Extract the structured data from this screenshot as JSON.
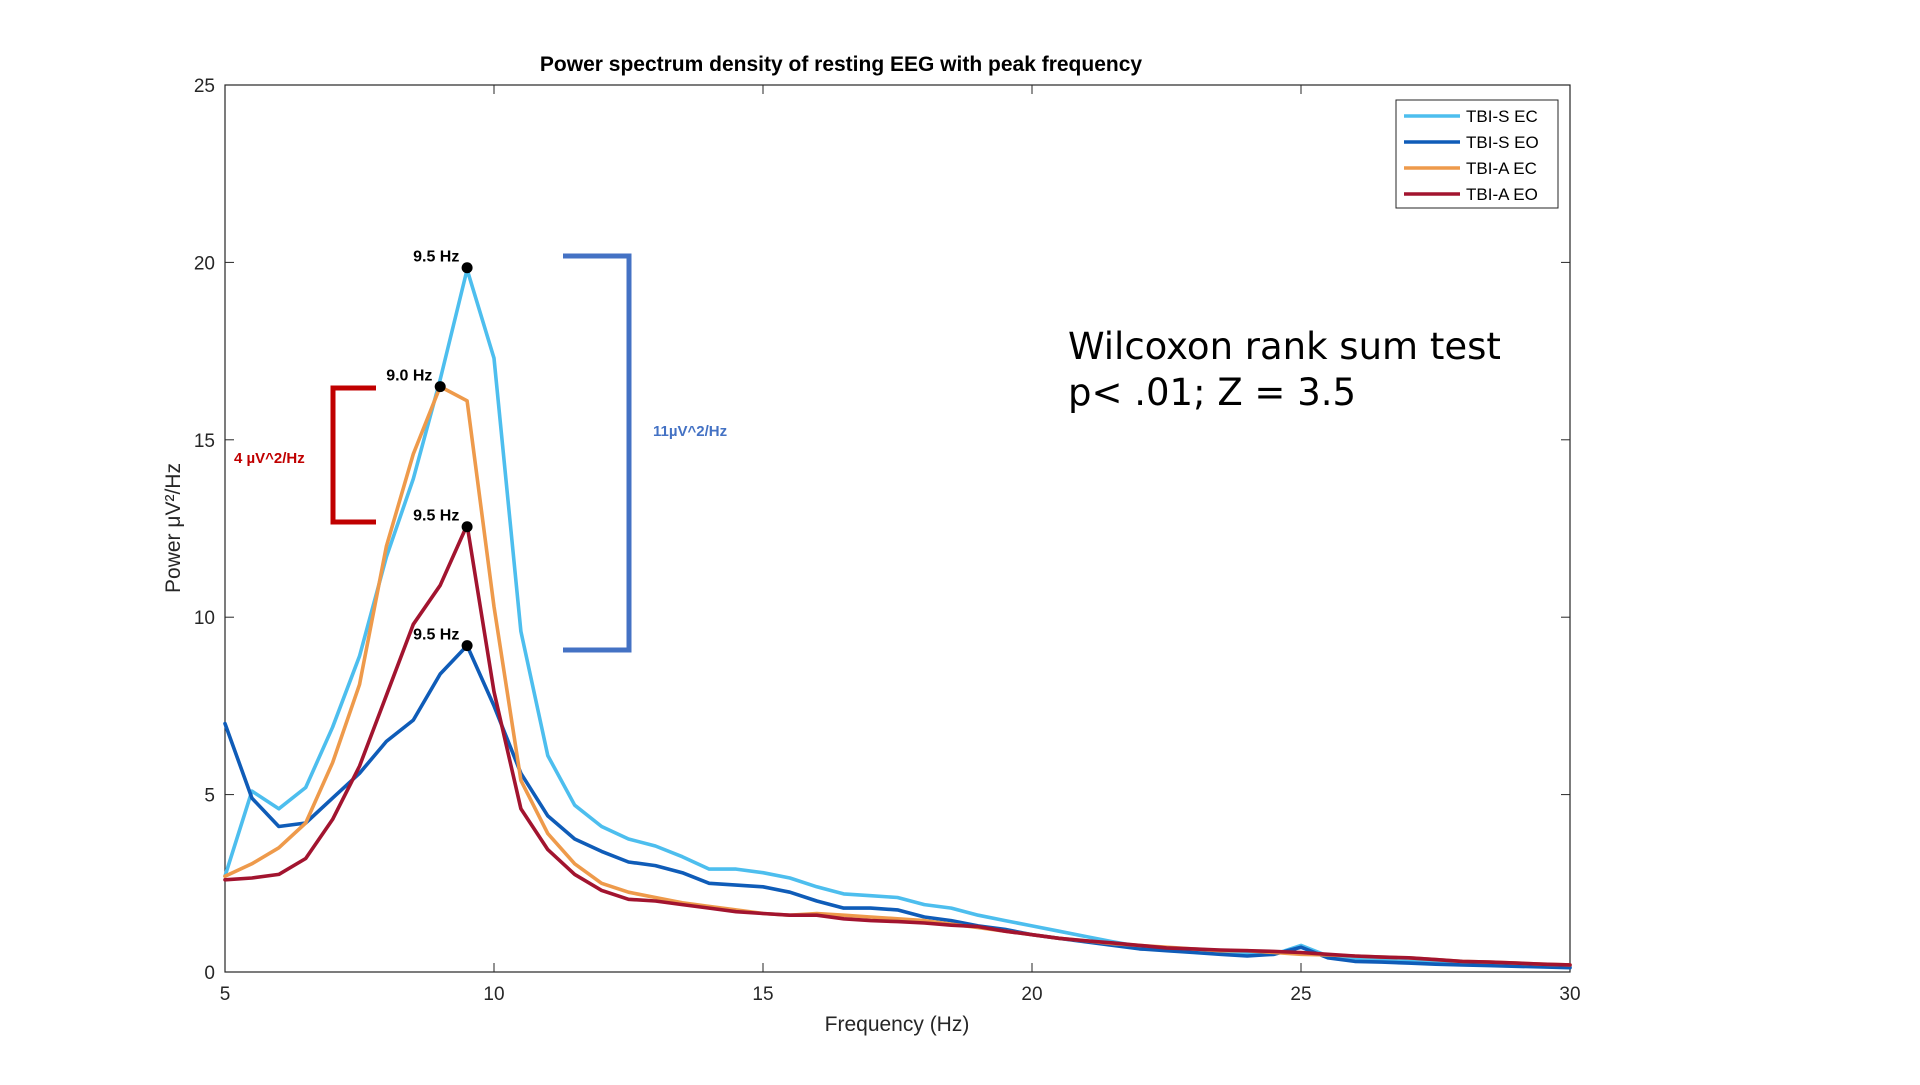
{
  "colors": {
    "tbi_s_ec": "#4DBEEE",
    "tbi_s_eo": "#0F5CB8",
    "tbi_a_ec": "#EE9A4B",
    "tbi_a_eo": "#A2142F",
    "bracket_red": "#C00000",
    "bracket_blue": "#4472C4"
  },
  "annotations": {
    "diff_a_label": "4 µV^2/Hz",
    "diff_s_label": "11µV^2/Hz",
    "stat_line1": "Wilcoxon rank sum test",
    "stat_line2": "p< .01; Z = 3.5"
  },
  "chart_data": {
    "type": "line",
    "title": "Power spectrum density of resting EEG with peak frequency",
    "xlabel": "Frequency (Hz)",
    "ylabel": "Power μV²/Hz",
    "xlim": [
      5,
      30
    ],
    "ylim": [
      0,
      25
    ],
    "xticks": [
      5,
      10,
      15,
      20,
      25,
      30
    ],
    "yticks": [
      0,
      5,
      10,
      15,
      20,
      25
    ],
    "grid": false,
    "legend_position": "top-right",
    "x": [
      5,
      5.5,
      6,
      6.5,
      7,
      7.5,
      8,
      8.5,
      9,
      9.5,
      10,
      10.5,
      11,
      11.5,
      12,
      12.5,
      13,
      13.5,
      14,
      14.5,
      15,
      15.5,
      16,
      16.5,
      17,
      17.5,
      18,
      18.5,
      19,
      19.5,
      20,
      20.5,
      21,
      21.5,
      22,
      22.5,
      23,
      23.5,
      24,
      24.5,
      25,
      25.5,
      26,
      26.5,
      27,
      27.5,
      28,
      28.5,
      29,
      29.5,
      30
    ],
    "series": [
      {
        "name": "TBI-S EC",
        "color": "#4DBEEE",
        "values": [
          2.7,
          5.1,
          4.6,
          5.2,
          6.9,
          8.9,
          11.7,
          13.9,
          16.7,
          19.8,
          17.3,
          9.6,
          6.1,
          4.7,
          4.1,
          3.75,
          3.55,
          3.25,
          2.9,
          2.9,
          2.8,
          2.65,
          2.4,
          2.2,
          2.15,
          2.1,
          1.9,
          1.8,
          1.6,
          1.45,
          1.3,
          1.15,
          1.0,
          0.85,
          0.72,
          0.65,
          0.6,
          0.55,
          0.5,
          0.5,
          0.75,
          0.45,
          0.38,
          0.33,
          0.3,
          0.28,
          0.25,
          0.22,
          0.2,
          0.17,
          0.15
        ]
      },
      {
        "name": "TBI-S EO",
        "color": "#0F5CB8",
        "values": [
          7.0,
          4.9,
          4.1,
          4.2,
          4.9,
          5.6,
          6.5,
          7.1,
          8.4,
          9.2,
          7.5,
          5.6,
          4.4,
          3.75,
          3.4,
          3.1,
          3.0,
          2.8,
          2.5,
          2.45,
          2.4,
          2.25,
          2.0,
          1.8,
          1.8,
          1.75,
          1.55,
          1.45,
          1.3,
          1.2,
          1.05,
          0.95,
          0.85,
          0.75,
          0.65,
          0.6,
          0.55,
          0.5,
          0.45,
          0.5,
          0.7,
          0.4,
          0.3,
          0.28,
          0.25,
          0.22,
          0.2,
          0.18,
          0.16,
          0.14,
          0.12
        ]
      },
      {
        "name": "TBI-A EC",
        "color": "#EE9A4B",
        "values": [
          2.7,
          3.05,
          3.5,
          4.2,
          5.9,
          8.1,
          12.0,
          14.6,
          16.5,
          16.1,
          10.3,
          5.4,
          3.9,
          3.05,
          2.5,
          2.25,
          2.1,
          1.95,
          1.85,
          1.75,
          1.65,
          1.6,
          1.65,
          1.6,
          1.55,
          1.5,
          1.45,
          1.35,
          1.25,
          1.15,
          1.05,
          0.95,
          0.88,
          0.8,
          0.75,
          0.7,
          0.65,
          0.6,
          0.6,
          0.55,
          0.5,
          0.48,
          0.45,
          0.42,
          0.4,
          0.35,
          0.3,
          0.28,
          0.25,
          0.22,
          0.2
        ]
      },
      {
        "name": "TBI-A EO",
        "color": "#A2142F",
        "values": [
          2.6,
          2.65,
          2.75,
          3.2,
          4.3,
          5.8,
          7.8,
          9.8,
          10.9,
          12.6,
          7.9,
          4.6,
          3.45,
          2.75,
          2.3,
          2.05,
          2.0,
          1.9,
          1.8,
          1.7,
          1.65,
          1.6,
          1.6,
          1.5,
          1.45,
          1.42,
          1.38,
          1.32,
          1.28,
          1.15,
          1.05,
          0.95,
          0.88,
          0.82,
          0.75,
          0.68,
          0.65,
          0.62,
          0.6,
          0.58,
          0.55,
          0.5,
          0.45,
          0.42,
          0.4,
          0.35,
          0.3,
          0.28,
          0.25,
          0.22,
          0.2
        ]
      }
    ],
    "peak_annotations": [
      {
        "label": "9.5 Hz",
        "x": 9.5,
        "y": 19.85,
        "series": "TBI-S EC"
      },
      {
        "label": "9.0 Hz",
        "x": 9.0,
        "y": 16.5,
        "series": "TBI-A EC"
      },
      {
        "label": "9.5 Hz",
        "x": 9.5,
        "y": 12.55,
        "series": "TBI-A EO"
      },
      {
        "label": "9.5 Hz",
        "x": 9.5,
        "y": 9.2,
        "series": "TBI-S EO"
      }
    ]
  }
}
